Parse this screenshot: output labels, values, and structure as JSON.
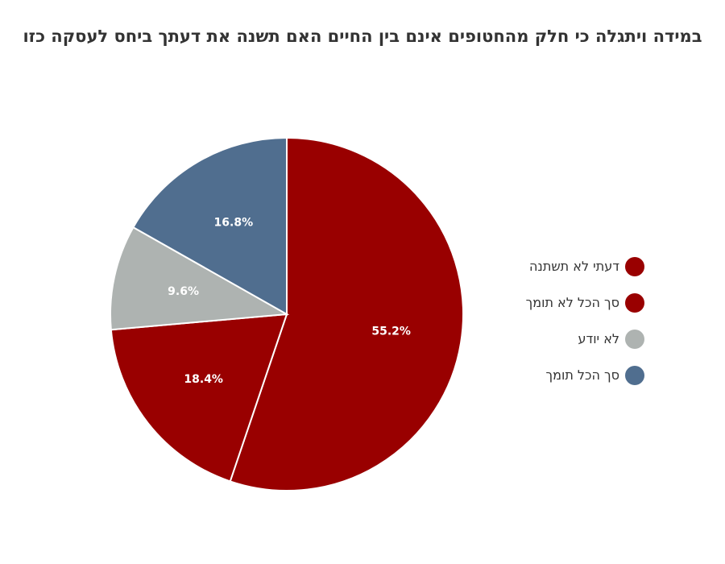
{
  "chart_data": {
    "type": "pie",
    "title": "במידה ויתגלה כי חלק מהחטופים אינם בין החיים האם תשנה את דעתך ביחס לעסקה כזו",
    "slices": [
      {
        "label": "דעתי לא תשתנה",
        "value": 55.2,
        "display": "55.2%",
        "color": "#990000"
      },
      {
        "label": "סך הכל לא תומך",
        "value": 18.4,
        "display": "18.4%",
        "color": "#990000"
      },
      {
        "label": "לא יודע",
        "value": 9.6,
        "display": "9.6%",
        "color": "#AEB3B1"
      },
      {
        "label": "סך הכל תומך",
        "value": 16.8,
        "display": "16.8%",
        "color": "#506E8F"
      }
    ],
    "start_angle_deg": 0,
    "direction": "clockwise",
    "legend_position": "right"
  }
}
